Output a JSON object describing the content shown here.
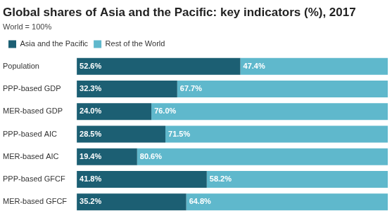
{
  "chart_data": {
    "type": "bar",
    "title": "Global shares of Asia and the Pacific: key indicators (%), 2017",
    "subtitle": "World = 100%",
    "orientation": "horizontal",
    "stacked": true,
    "grid": false,
    "legend": "upper left",
    "data_labels": true,
    "tick_labels": "y",
    "categories": [
      "Population",
      "PPP-based GDP",
      "MER-based GDP",
      "PPP-based AIC",
      "MER-based AIC",
      "PPP-based GFCF",
      "MER-based GFCF"
    ],
    "xlim": [
      0,
      100
    ],
    "series": [
      {
        "name": "Asia and the Pacific",
        "color": "#1c5f73",
        "values": [
          52.6,
          32.3,
          24.0,
          28.5,
          19.4,
          41.8,
          35.2
        ],
        "value_labels": [
          "52.6%",
          "32.3%",
          "24.0%",
          "28.5%",
          "19.4%",
          "41.8%",
          "35.2%"
        ]
      },
      {
        "name": "Rest of the World",
        "color": "#5fb8cc",
        "values": [
          47.4,
          67.7,
          76.0,
          71.5,
          80.6,
          58.2,
          64.8
        ],
        "value_labels": [
          "47.4%",
          "67.7%",
          "76.0%",
          "71.5%",
          "80.6%",
          "58.2%",
          "64.8%"
        ]
      }
    ]
  }
}
